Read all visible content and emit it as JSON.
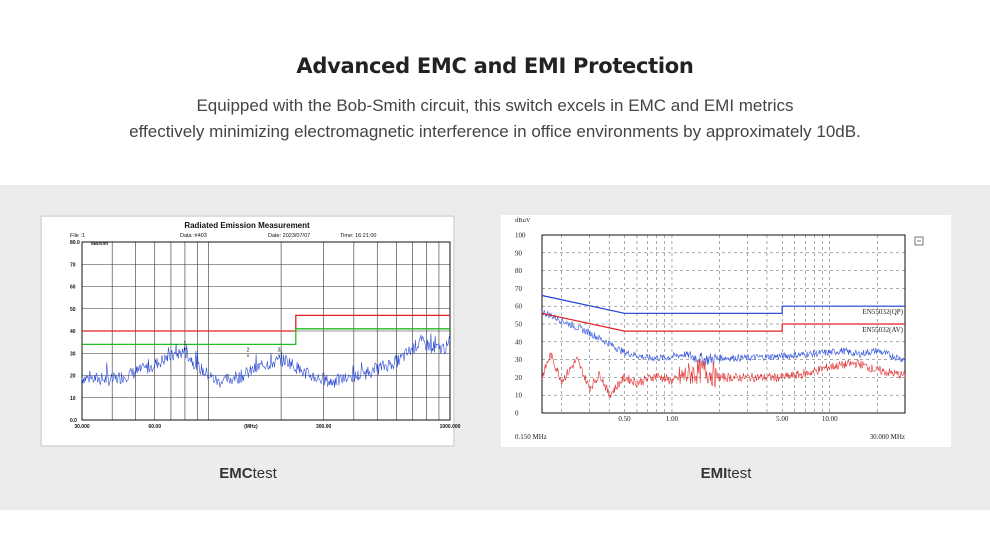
{
  "header": {
    "title": "Advanced EMC and EMI Protection",
    "subtitle_line1": "Equipped with the Bob-Smith circuit, this switch excels in EMC and EMI metrics",
    "subtitle_line2": "effectively minimizing electromagnetic interference in office environments by approximately 10dB."
  },
  "captions": {
    "emc": {
      "bold": "EMC",
      "rest": "test"
    },
    "emi": {
      "bold": "EMI",
      "rest": "test"
    }
  },
  "chart_data": [
    {
      "type": "line",
      "title": "Radiated Emission Measurement",
      "header": {
        "file": "File :1",
        "data": "Data :#403",
        "date": "Date: 2023/07/07",
        "time": "Time: 16:21:00"
      },
      "ylabel": "dBuV/m",
      "ylim": [
        0,
        80
      ],
      "xlim": [
        30,
        1000
      ],
      "xscale": "log",
      "x_tick_labels": [
        "30.000",
        "60.00",
        "(MHz)",
        "300.00",
        "1000.000"
      ],
      "y_tick_labels": [
        "0.0",
        "10",
        "20",
        "30",
        "40",
        "50",
        "60",
        "70",
        "80.0"
      ],
      "grid": true,
      "series": [
        {
          "color": "#e02020",
          "x": [
            30,
            230,
            230,
            1000
          ],
          "y": [
            40,
            40,
            47,
            47
          ]
        },
        {
          "color": "#22bb22",
          "x": [
            30,
            230,
            230,
            1000
          ],
          "y": [
            34,
            34,
            41,
            41
          ]
        },
        {
          "color": "#1f3fd0",
          "x": [
            30,
            40,
            55,
            68,
            80,
            90,
            110,
            140,
            170,
            210,
            250,
            320,
            420,
            500,
            620,
            750,
            900,
            1000
          ],
          "y": [
            19,
            18,
            23,
            28,
            31,
            24,
            17,
            20,
            25,
            27,
            21,
            17,
            20,
            23,
            27,
            35,
            32,
            33
          ]
        }
      ],
      "markers": [
        {
          "label": "1",
          "x": 80,
          "y": 31
        },
        {
          "label": "2",
          "x": 146,
          "y": 28
        },
        {
          "label": "3",
          "x": 196,
          "y": 28
        }
      ]
    },
    {
      "type": "line",
      "ylabel": "dBuV",
      "ylim": [
        0,
        100
      ],
      "xlim": [
        0.15,
        30
      ],
      "xscale": "log",
      "x_tick_labels": [
        "0.50",
        "1.00",
        "5.00",
        "10.00"
      ],
      "x_range_labels": [
        "0.150 MHz",
        "30.000 MHz"
      ],
      "y_tick_labels": [
        "0",
        "10",
        "20",
        "30",
        "40",
        "50",
        "60",
        "70",
        "80",
        "90",
        "100"
      ],
      "grid": true,
      "series": [
        {
          "name": "EN55032(QP)",
          "color": "#1f3fd0",
          "x": [
            0.15,
            0.5,
            5,
            5,
            30
          ],
          "y": [
            66,
            56,
            56,
            60,
            60
          ]
        },
        {
          "name": "EN55032(AV)",
          "color": "#e02020",
          "x": [
            0.15,
            0.5,
            5,
            5,
            30
          ],
          "y": [
            56,
            46,
            46,
            50,
            50
          ]
        },
        {
          "color": "#3355dd",
          "x": [
            0.15,
            0.2,
            0.3,
            0.4,
            0.5,
            0.7,
            0.9,
            1.2,
            1.6,
            2,
            3,
            5,
            7,
            10,
            12,
            15,
            20,
            25,
            30
          ],
          "y": [
            57,
            52,
            45,
            39,
            34,
            31,
            31,
            33,
            30,
            31,
            31,
            32,
            33,
            34,
            35,
            33,
            35,
            32,
            30
          ]
        },
        {
          "color": "#e03030",
          "x": [
            0.15,
            0.17,
            0.2,
            0.25,
            0.3,
            0.35,
            0.4,
            0.5,
            0.6,
            0.8,
            1.0,
            1.3,
            1.6,
            2,
            3,
            5,
            7,
            10,
            15,
            20,
            30
          ],
          "y": [
            20,
            33,
            18,
            30,
            14,
            22,
            10,
            20,
            17,
            21,
            18,
            22,
            24,
            20,
            20,
            20,
            22,
            26,
            28,
            24,
            21
          ]
        }
      ]
    }
  ]
}
